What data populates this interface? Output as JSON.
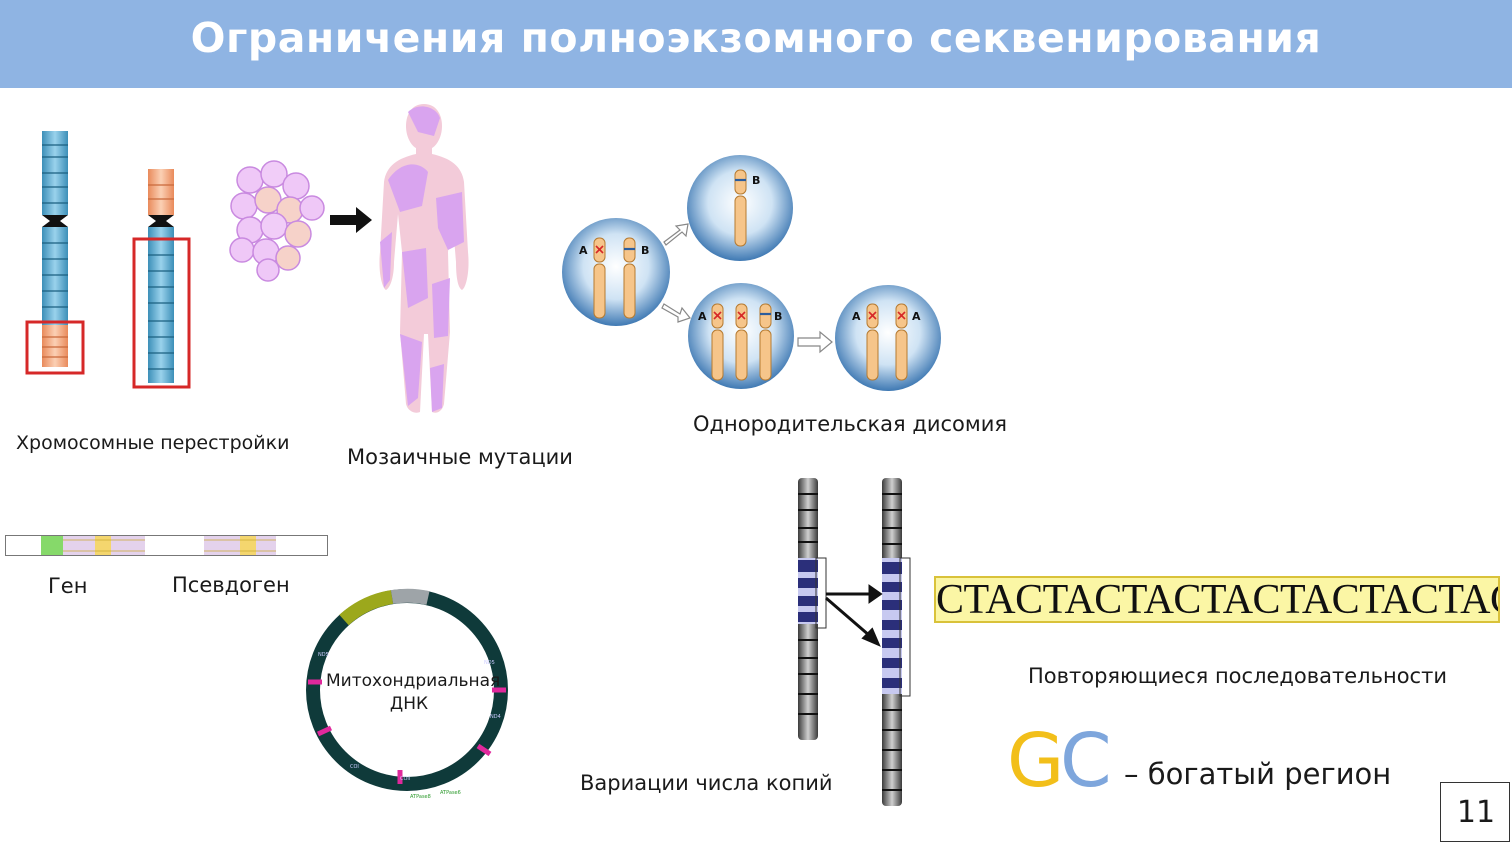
{
  "slide": {
    "title": "Ограничения полноэкзомного секвенирования",
    "page_number": "11"
  },
  "labels": {
    "chromosomal_rearrangements": "Хромосомные перестройки",
    "mosaic_mutations": "Мозаичные мутации",
    "uniparental_disomy": "Однородительская дисомия",
    "gene": "Ген",
    "pseudogene": "Псевдоген",
    "mtdna_line1": "Митохондриальная",
    "mtdna_line2": "ДНК",
    "cnv": "Вариации числа копий",
    "repeats": "Повторяющиеся последовательности",
    "gc_rich": "– богатый регион"
  },
  "repeat_sequence": "CTACTACTACTACTACTACTACTA",
  "gc": {
    "g": "G",
    "c": "C"
  },
  "disomy_markers": {
    "a": "A",
    "b": "B"
  },
  "colors": {
    "header": "#8fb4e3",
    "g_color": "#f2bf1a",
    "c_color": "#7ea6dc",
    "highlight_box": "#d62828",
    "mosaic_pink": "#d9a4ef"
  }
}
